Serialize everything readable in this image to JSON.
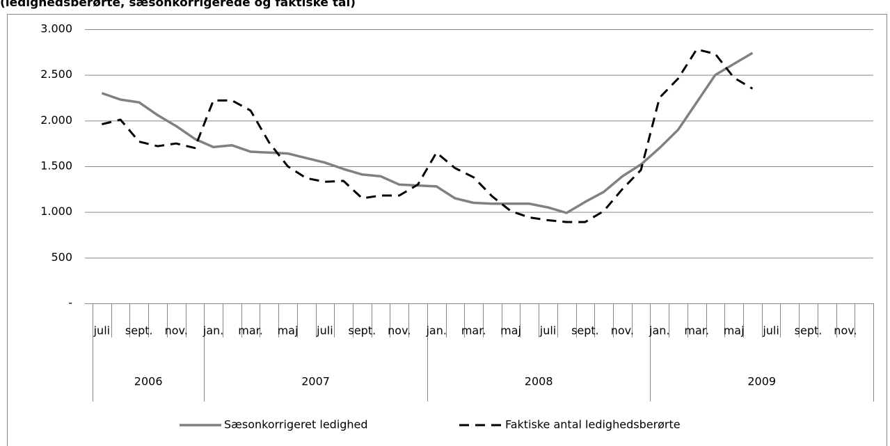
{
  "chart_data": {
    "type": "line",
    "title": "(ledighedsberørte, sæsonkorrigerede og faktiske tal)",
    "categories": [
      "juli",
      null,
      "sept.",
      null,
      "nov.",
      null,
      "jan.",
      null,
      "mar.",
      null,
      "maj",
      null,
      "juli",
      null,
      "sept.",
      null,
      "nov.",
      null,
      "jan.",
      null,
      "mar.",
      null,
      "maj",
      null,
      "juli",
      null,
      "sept.",
      null,
      "nov.",
      null,
      "jan.",
      null,
      "mar.",
      null,
      "maj",
      null,
      "juli",
      null,
      "sept.",
      null,
      "nov.",
      null
    ],
    "x_groups": [
      {
        "label": "2006",
        "span": 6
      },
      {
        "label": "2007",
        "span": 12
      },
      {
        "label": "2008",
        "span": 12
      },
      {
        "label": "2009",
        "span": 12
      }
    ],
    "series": [
      {
        "name": "Sæsonkorrigeret ledighed",
        "color": "#808080",
        "dash": false,
        "values": [
          2300,
          2230,
          2200,
          2060,
          1940,
          1800,
          1710,
          1730,
          1660,
          1650,
          1640,
          1590,
          1540,
          1470,
          1410,
          1390,
          1300,
          1290,
          1280,
          1150,
          1100,
          1090,
          1090,
          1090,
          1050,
          990,
          1110,
          1220,
          1390,
          1520,
          1700,
          1900,
          2200,
          2500,
          2620,
          2740,
          null,
          null,
          null,
          null,
          null,
          null
        ]
      },
      {
        "name": "Faktiske antal ledighedsberørte",
        "color": "#000000",
        "dash": true,
        "values": [
          1960,
          2010,
          1770,
          1720,
          1750,
          1700,
          2220,
          2220,
          2110,
          1760,
          1500,
          1370,
          1330,
          1340,
          1150,
          1180,
          1180,
          1300,
          1650,
          1480,
          1380,
          1170,
          1010,
          940,
          910,
          890,
          890,
          1010,
          1250,
          1460,
          2250,
          2460,
          2780,
          2730,
          2470,
          2350,
          null,
          null,
          null,
          null,
          null,
          null
        ]
      }
    ],
    "ylim": [
      0,
      3000
    ],
    "yticks": [
      {
        "value": 0,
        "label": "-"
      },
      500,
      {
        "value": 1000,
        "label": "1.000"
      },
      {
        "value": 1500,
        "label": "1.500"
      },
      {
        "value": 2000,
        "label": "2.000"
      },
      {
        "value": 2500,
        "label": "2.500"
      },
      {
        "value": 3000,
        "label": "3.000"
      }
    ],
    "grid": true,
    "legend": "bottom"
  }
}
